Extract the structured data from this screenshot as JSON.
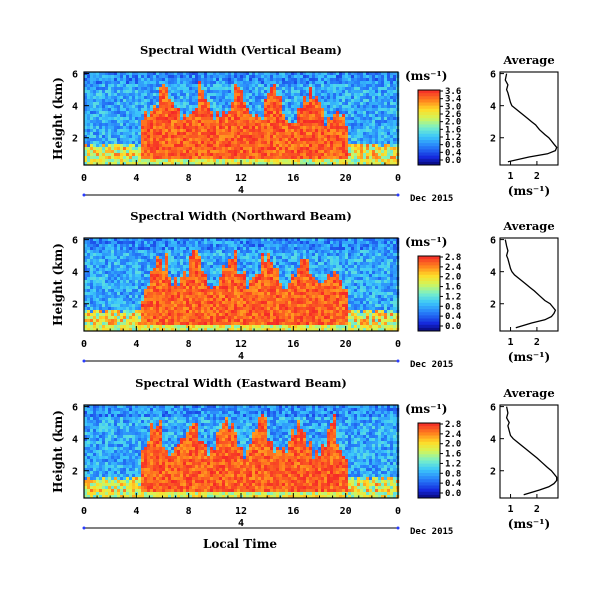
{
  "figure": {
    "xlabel": "Local Time",
    "date_label": "Dec 2015",
    "unit_label": "(ms⁻¹)",
    "profile_unit_label": "(ms⁻¹)"
  },
  "chart_data": [
    {
      "type": "heatmap",
      "title": "Spectral Width (Vertical Beam)",
      "ylabel": "Height (km)",
      "x_ticks": [
        "0",
        "4",
        "8",
        "12",
        "16",
        "20",
        "0"
      ],
      "xlim": [
        0,
        24
      ],
      "y_ticks": [
        "2",
        "4",
        "6"
      ],
      "ylim": [
        0.3,
        6.1
      ],
      "day_marker": "4",
      "colorbar": {
        "ticks": [
          "3.6",
          "3.4",
          "3.0",
          "2.6",
          "2.0",
          "1.6",
          "1.2",
          "0.8",
          "0.4",
          "0.0"
        ],
        "range": [
          0.0,
          3.6
        ],
        "unit": "(ms⁻¹)"
      },
      "profile": {
        "title": "Average",
        "x_ticks": [
          "1",
          "2"
        ],
        "xlim": [
          0.6,
          2.8
        ],
        "y_ticks": [
          "2",
          "4",
          "6"
        ],
        "ylim": [
          0.3,
          6.1
        ],
        "height_km": [
          0.5,
          0.8,
          1.0,
          1.2,
          1.4,
          1.6,
          1.8,
          2.0,
          2.2,
          2.5,
          2.8,
          3.0,
          3.2,
          3.4,
          3.6,
          3.8,
          4.0,
          4.2,
          4.5,
          4.8,
          5.0,
          5.3,
          5.6,
          6.0
        ],
        "width": [
          0.9,
          1.7,
          2.4,
          2.7,
          2.75,
          2.65,
          2.55,
          2.45,
          2.3,
          2.1,
          1.95,
          1.8,
          1.65,
          1.5,
          1.35,
          1.2,
          1.05,
          1.0,
          0.95,
          0.9,
          0.85,
          0.9,
          0.8,
          0.85
        ]
      }
    },
    {
      "type": "heatmap",
      "title": "Spectral Width (Northward Beam)",
      "ylabel": "Height (km)",
      "x_ticks": [
        "0",
        "4",
        "8",
        "12",
        "16",
        "20",
        "0"
      ],
      "xlim": [
        0,
        24
      ],
      "y_ticks": [
        "2",
        "4",
        "6"
      ],
      "ylim": [
        0.3,
        6.1
      ],
      "day_marker": "4",
      "colorbar": {
        "ticks": [
          "2.8",
          "2.4",
          "2.0",
          "1.6",
          "1.2",
          "0.8",
          "0.4",
          "0.0"
        ],
        "range": [
          0.0,
          2.8
        ],
        "unit": "(ms⁻¹)"
      },
      "profile": {
        "title": "Average",
        "x_ticks": [
          "1",
          "2"
        ],
        "xlim": [
          0.6,
          2.8
        ],
        "y_ticks": [
          "2",
          "4",
          "6"
        ],
        "ylim": [
          0.3,
          6.1
        ],
        "height_km": [
          0.5,
          0.8,
          1.0,
          1.2,
          1.4,
          1.6,
          1.8,
          2.0,
          2.2,
          2.5,
          2.8,
          3.0,
          3.2,
          3.4,
          3.6,
          3.8,
          4.0,
          4.2,
          4.5,
          4.8,
          5.0,
          5.3,
          5.6,
          6.0
        ],
        "width": [
          1.2,
          1.8,
          2.3,
          2.55,
          2.65,
          2.7,
          2.6,
          2.5,
          2.3,
          2.1,
          1.9,
          1.75,
          1.6,
          1.45,
          1.3,
          1.15,
          1.05,
          1.0,
          0.95,
          0.9,
          0.85,
          0.9,
          0.85,
          0.8
        ]
      }
    },
    {
      "type": "heatmap",
      "title": "Spectral Width (Eastward Beam)",
      "ylabel": "Height (km)",
      "x_ticks": [
        "0",
        "4",
        "8",
        "12",
        "16",
        "20",
        "0"
      ],
      "xlim": [
        0,
        24
      ],
      "y_ticks": [
        "2",
        "4",
        "6"
      ],
      "ylim": [
        0.3,
        6.1
      ],
      "day_marker": "4",
      "colorbar": {
        "ticks": [
          "2.8",
          "2.4",
          "2.0",
          "1.6",
          "1.2",
          "0.8",
          "0.4",
          "0.0"
        ],
        "range": [
          0.0,
          2.8
        ],
        "unit": "(ms⁻¹)"
      },
      "profile": {
        "title": "Average",
        "x_ticks": [
          "1",
          "2"
        ],
        "xlim": [
          0.6,
          2.8
        ],
        "y_ticks": [
          "2",
          "4",
          "6"
        ],
        "ylim": [
          0.3,
          6.1
        ],
        "height_km": [
          0.5,
          0.8,
          1.0,
          1.2,
          1.4,
          1.6,
          1.8,
          2.0,
          2.2,
          2.5,
          2.8,
          3.0,
          3.2,
          3.4,
          3.6,
          3.8,
          4.0,
          4.2,
          4.5,
          4.8,
          5.0,
          5.3,
          5.6,
          6.0
        ],
        "width": [
          1.5,
          2.1,
          2.45,
          2.65,
          2.75,
          2.75,
          2.65,
          2.55,
          2.4,
          2.2,
          2.0,
          1.85,
          1.7,
          1.55,
          1.4,
          1.25,
          1.1,
          1.0,
          0.95,
          0.9,
          0.95,
          0.85,
          0.9,
          0.85
        ]
      }
    }
  ]
}
